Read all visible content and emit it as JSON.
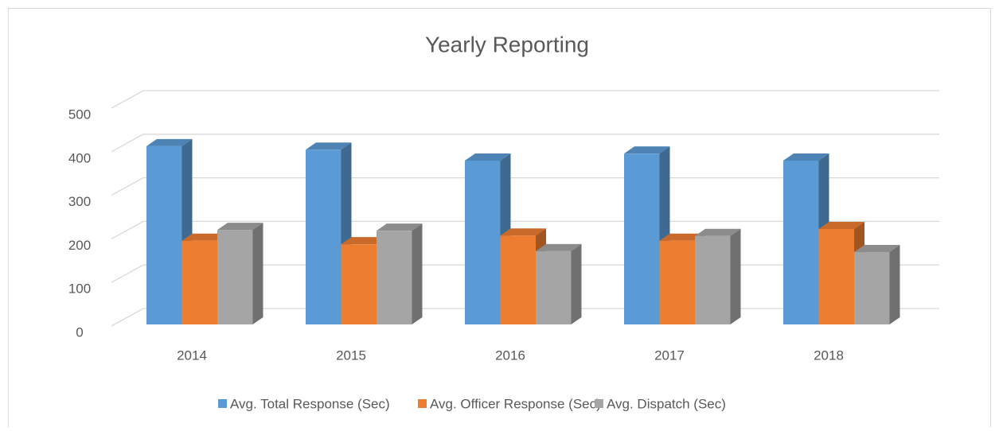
{
  "chart_data": {
    "type": "bar3d",
    "title": "Yearly Reporting",
    "categories": [
      "2014",
      "2015",
      "2016",
      "2017",
      "2018"
    ],
    "series": [
      {
        "name": "Avg. Total Response (Sec)",
        "color": "#5b9bd5",
        "values": [
          409,
          401,
          376,
          392,
          376
        ]
      },
      {
        "name": "Avg. Officer Response (Sec)",
        "color": "#ed7d31",
        "values": [
          192,
          184,
          204,
          192,
          219
        ]
      },
      {
        "name": "Avg. Dispatch (Sec)",
        "color": "#a5a5a5",
        "values": [
          217,
          215,
          168,
          203,
          166
        ]
      }
    ],
    "ylim": [
      0,
      500
    ],
    "yticks": [
      0,
      100,
      200,
      300,
      400,
      500
    ],
    "grid": true,
    "legend": "bottom"
  }
}
